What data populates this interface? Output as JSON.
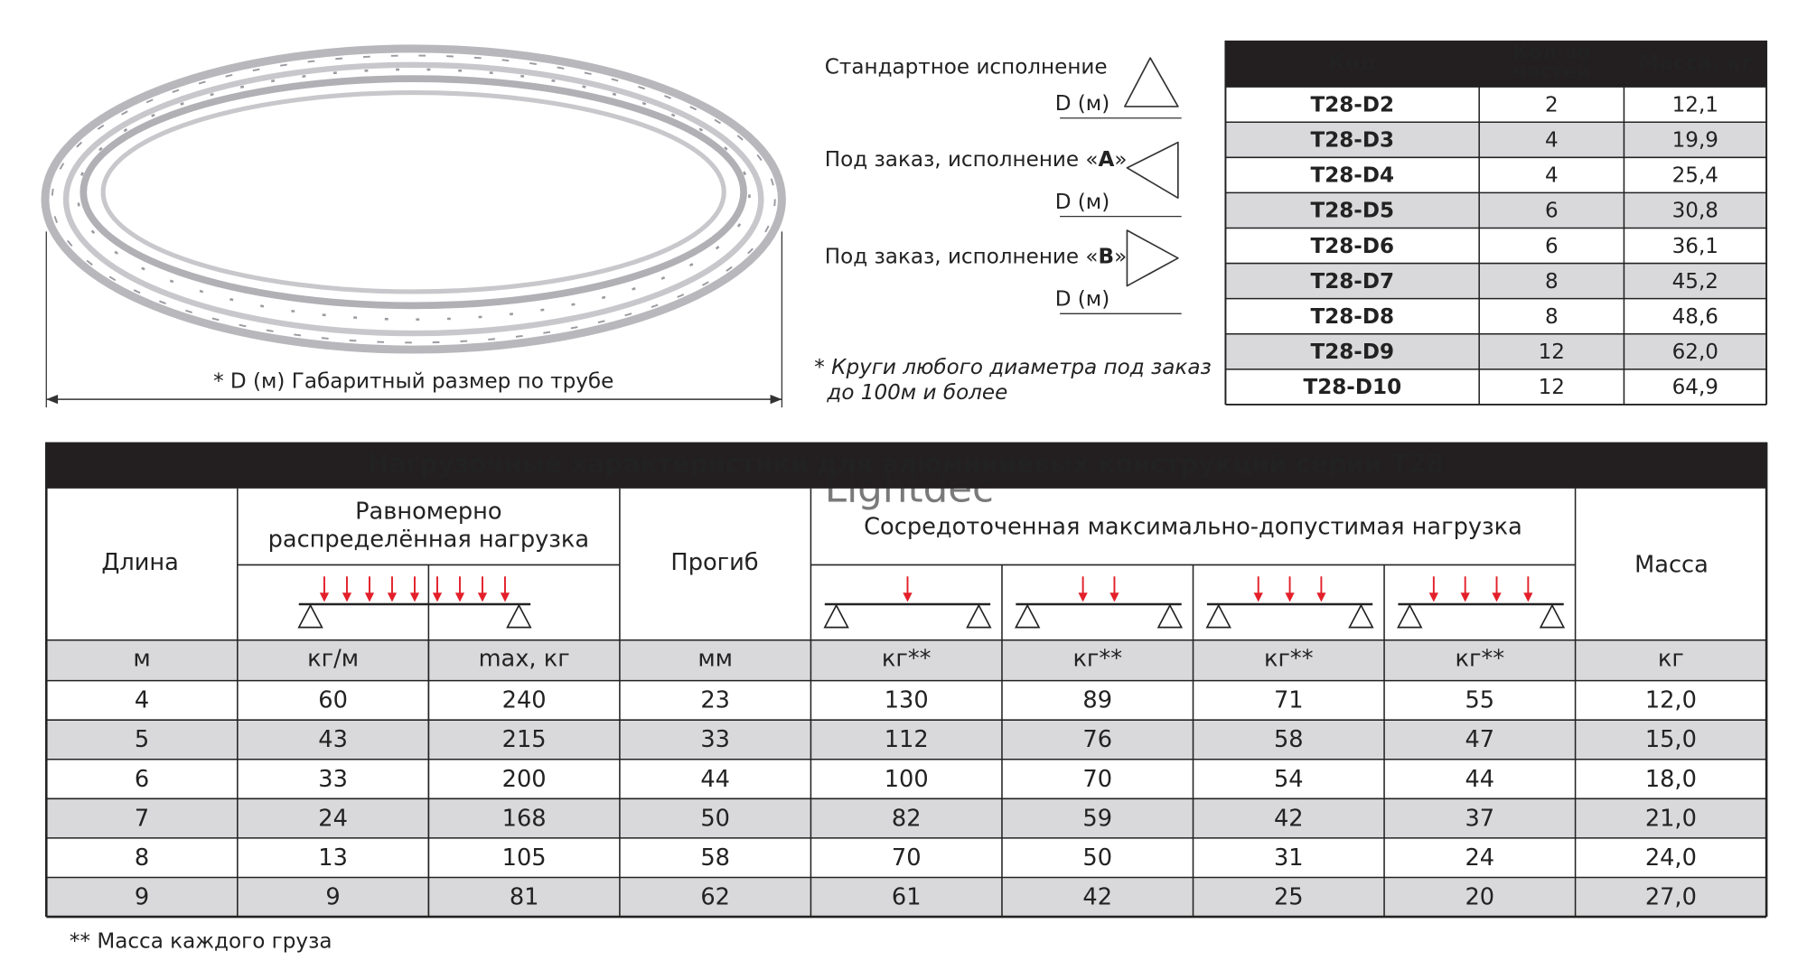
{
  "ring": {
    "caption": "* D (м)  Габаритный размер по трубе"
  },
  "versions": [
    {
      "label": [
        "Стандартное исполнение"
      ],
      "d": "D (м)"
    },
    {
      "label": [
        "Под заказ, исполнение «",
        "A",
        "»"
      ],
      "d": "D (м)"
    },
    {
      "label": [
        "Под заказ, исполнение «",
        "B",
        "»"
      ],
      "d": "D (м)"
    }
  ],
  "note": [
    "* Круги любого диаметра под заказ",
    "до 100м и более"
  ],
  "parts_table": {
    "headers": [
      [
        "Код"
      ],
      [
        "Кол-во",
        "частей"
      ],
      [
        "Масса, кг"
      ]
    ],
    "rows": [
      [
        "T28-D2",
        2,
        "12,1"
      ],
      [
        "T28-D3",
        4,
        "19,9"
      ],
      [
        "T28-D4",
        4,
        "25,4"
      ],
      [
        "T28-D5",
        6,
        "30,8"
      ],
      [
        "T28-D6",
        6,
        "36,1"
      ],
      [
        "T28-D7",
        8,
        "45,2"
      ],
      [
        "T28-D8",
        8,
        "48,6"
      ],
      [
        "T28-D9",
        12,
        "62,0"
      ],
      [
        "T28-D10",
        12,
        "64,9"
      ]
    ]
  },
  "load_table": {
    "title": "Нагрузочные характеристики для алюминиевых конструкций серии T28",
    "watermark": "Lightdec",
    "headers": {
      "length": "Длина",
      "uniform": [
        "Равномерно",
        "распределённая нагрузка"
      ],
      "deflection": "Прогиб",
      "point": "Сосредоточенная максимально-допустимая нагрузка",
      "mass": "Масса"
    },
    "units": [
      "м",
      "кг/м",
      "max, кг",
      "мм",
      "кг**",
      "кг**",
      "кг**",
      "кг**",
      "кг"
    ],
    "rows": [
      [
        4,
        60,
        240,
        23,
        130,
        89,
        71,
        55,
        "12,0"
      ],
      [
        5,
        43,
        215,
        33,
        112,
        76,
        58,
        47,
        "15,0"
      ],
      [
        6,
        33,
        200,
        44,
        100,
        70,
        54,
        44,
        "18,0"
      ],
      [
        7,
        24,
        168,
        50,
        82,
        59,
        42,
        37,
        "21,0"
      ],
      [
        8,
        13,
        105,
        58,
        70,
        50,
        31,
        24,
        "24,0"
      ],
      [
        9,
        9,
        81,
        62,
        61,
        42,
        25,
        20,
        "27,0"
      ]
    ]
  },
  "footnote": "** Масса каждого груза"
}
